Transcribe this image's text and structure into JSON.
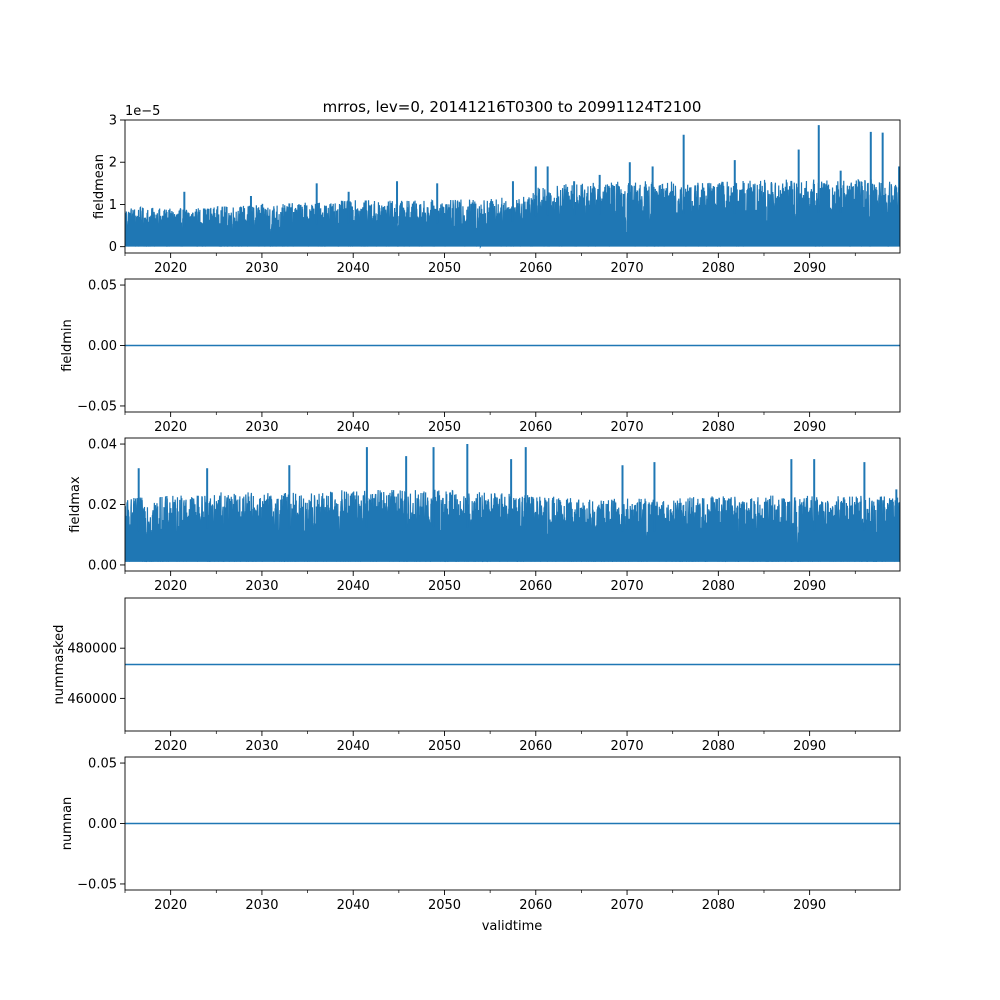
{
  "figure": {
    "title": "mrros, lev=0, 20141216T0300 to 20991124T2100",
    "xlabel": "validtime",
    "series_color": "#1f77b4"
  },
  "chart_data": [
    {
      "type": "line",
      "ylabel": "fieldmean",
      "y_offset_label": "1e−5",
      "xlim": [
        2015.0,
        2099.9
      ],
      "ylim": [
        -0.15,
        3.0
      ],
      "y_scale_factor": "1e-5",
      "x_ticks": [
        2020,
        2030,
        2040,
        2050,
        2060,
        2070,
        2080,
        2090
      ],
      "x_tick_labels": [
        "2020",
        "2030",
        "2040",
        "2050",
        "2060",
        "2070",
        "2080",
        "2090"
      ],
      "y_ticks": [
        0,
        1,
        2,
        3
      ],
      "y_tick_labels": [
        "0",
        "1",
        "2",
        "3"
      ],
      "grid": false,
      "series": [
        {
          "x": [
            2015,
            2020,
            2025,
            2030,
            2035,
            2040,
            2045,
            2050,
            2055,
            2059.5,
            2060,
            2065,
            2070,
            2075,
            2080,
            2085,
            2090,
            2095,
            2099.9
          ],
          "upper": [
            0.95,
            0.9,
            0.95,
            1.0,
            1.05,
            1.1,
            1.1,
            1.1,
            1.15,
            1.2,
            1.45,
            1.5,
            1.55,
            1.55,
            1.55,
            1.6,
            1.6,
            1.6,
            1.6
          ],
          "lower": [
            0,
            0,
            0,
            0,
            0,
            0,
            0,
            0,
            0,
            0,
            0,
            0,
            0,
            0,
            0,
            0,
            0,
            0,
            0
          ],
          "spikes_x": [
            2021.5,
            2028.8,
            2036.0,
            2039.5,
            2044.8,
            2049.2,
            2057.5,
            2060.0,
            2061.3,
            2064.2,
            2067.0,
            2070.3,
            2072.8,
            2076.2,
            2081.8,
            2088.8,
            2091.0,
            2093.4,
            2096.7,
            2098.0,
            2099.8
          ],
          "spikes_y": [
            1.3,
            1.2,
            1.5,
            1.3,
            1.55,
            1.5,
            1.55,
            1.9,
            1.9,
            1.55,
            1.7,
            2.0,
            1.9,
            2.65,
            2.05,
            2.3,
            2.88,
            1.8,
            2.72,
            2.7,
            1.9
          ]
        }
      ]
    },
    {
      "type": "line",
      "ylabel": "fieldmin",
      "xlim": [
        2015.0,
        2099.9
      ],
      "ylim": [
        -0.055,
        0.055
      ],
      "x_ticks": [
        2020,
        2030,
        2040,
        2050,
        2060,
        2070,
        2080,
        2090
      ],
      "x_tick_labels": [
        "2020",
        "2030",
        "2040",
        "2050",
        "2060",
        "2070",
        "2080",
        "2090"
      ],
      "y_ticks": [
        -0.05,
        0.0,
        0.05
      ],
      "y_tick_labels": [
        "−0.05",
        "0.00",
        "0.05"
      ],
      "grid": false,
      "series": [
        {
          "x": [
            2015.0,
            2099.9
          ],
          "y": [
            0.0,
            0.0
          ]
        }
      ]
    },
    {
      "type": "line",
      "ylabel": "fieldmax",
      "xlim": [
        2015.0,
        2099.9
      ],
      "ylim": [
        -0.002,
        0.042
      ],
      "x_ticks": [
        2020,
        2030,
        2040,
        2050,
        2060,
        2070,
        2080,
        2090
      ],
      "x_tick_labels": [
        "2020",
        "2030",
        "2040",
        "2050",
        "2060",
        "2070",
        "2080",
        "2090"
      ],
      "y_ticks": [
        0.0,
        0.02,
        0.04
      ],
      "y_tick_labels": [
        "0.00",
        "0.02",
        "0.04"
      ],
      "grid": false,
      "series": [
        {
          "x": [
            2015,
            2020,
            2025,
            2030,
            2035,
            2040,
            2045,
            2050,
            2055,
            2060,
            2065,
            2070,
            2075,
            2080,
            2085,
            2090,
            2095,
            2099.9
          ],
          "upper": [
            0.022,
            0.023,
            0.024,
            0.024,
            0.024,
            0.025,
            0.025,
            0.025,
            0.024,
            0.023,
            0.022,
            0.022,
            0.022,
            0.023,
            0.023,
            0.023,
            0.023,
            0.023
          ],
          "lower": [
            0.001,
            0.001,
            0.001,
            0.001,
            0.001,
            0.001,
            0.001,
            0.001,
            0.001,
            0.001,
            0.001,
            0.001,
            0.001,
            0.001,
            0.001,
            0.001,
            0.001,
            0.001
          ],
          "spikes_x": [
            2016.5,
            2024.0,
            2033.0,
            2041.5,
            2045.8,
            2048.8,
            2052.5,
            2057.3,
            2058.9,
            2069.5,
            2073.0,
            2088.0,
            2090.5,
            2096.0,
            2099.5
          ],
          "spikes_y": [
            0.032,
            0.032,
            0.033,
            0.039,
            0.036,
            0.039,
            0.04,
            0.035,
            0.039,
            0.033,
            0.034,
            0.035,
            0.035,
            0.034,
            0.025
          ]
        }
      ]
    },
    {
      "type": "line",
      "ylabel": "nummasked",
      "xlim": [
        2015.0,
        2099.9
      ],
      "ylim": [
        447000,
        500000
      ],
      "x_ticks": [
        2020,
        2030,
        2040,
        2050,
        2060,
        2070,
        2080,
        2090
      ],
      "x_tick_labels": [
        "2020",
        "2030",
        "2040",
        "2050",
        "2060",
        "2070",
        "2080",
        "2090"
      ],
      "y_ticks": [
        460000,
        480000
      ],
      "y_tick_labels": [
        "460000",
        "480000"
      ],
      "grid": false,
      "series": [
        {
          "x": [
            2015.0,
            2099.9
          ],
          "y": [
            473500,
            473500
          ]
        }
      ]
    },
    {
      "type": "line",
      "ylabel": "numnan",
      "xlim": [
        2015.0,
        2099.9
      ],
      "ylim": [
        -0.055,
        0.055
      ],
      "x_ticks": [
        2020,
        2030,
        2040,
        2050,
        2060,
        2070,
        2080,
        2090
      ],
      "x_tick_labels": [
        "2020",
        "2030",
        "2040",
        "2050",
        "2060",
        "2070",
        "2080",
        "2090"
      ],
      "y_ticks": [
        -0.05,
        0.0,
        0.05
      ],
      "y_tick_labels": [
        "−0.05",
        "0.00",
        "0.05"
      ],
      "grid": false,
      "series": [
        {
          "x": [
            2015.0,
            2099.9
          ],
          "y": [
            0.0,
            0.0
          ]
        }
      ]
    }
  ]
}
